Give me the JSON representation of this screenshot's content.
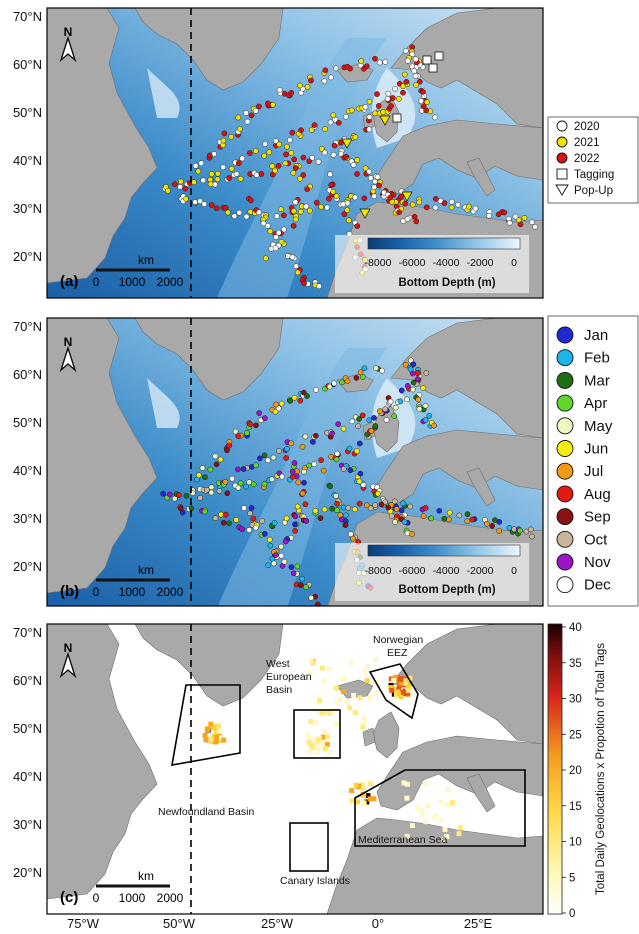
{
  "lat_ticks": [
    "70°N",
    "60°N",
    "50°N",
    "40°N",
    "30°N",
    "20°N"
  ],
  "lon_ticks": [
    "75°W",
    "50°W",
    "25°W",
    "0°",
    "25°E"
  ],
  "north_arrow": "N",
  "scalebar": {
    "unit": "km",
    "labels": [
      "0",
      "1000",
      "2000"
    ]
  },
  "panels": [
    {
      "letter": "(a)"
    },
    {
      "letter": "(b)"
    },
    {
      "letter": "(c)"
    }
  ],
  "depth_bar": {
    "title": "Bottom Depth (m)",
    "ticks": [
      "-8000",
      "-6000",
      "-4000",
      "-2000",
      "0"
    ],
    "colors": [
      "#0b3d78",
      "#1660a8",
      "#2e86c6",
      "#5aa6d8",
      "#8dc3e6",
      "#bcdcf0",
      "#e3f0f9"
    ]
  },
  "legend_a": [
    {
      "label": "2020",
      "marker": "circle",
      "color": "#ffffff"
    },
    {
      "label": "2021",
      "marker": "circle",
      "color": "#f2e200"
    },
    {
      "label": "2022",
      "marker": "circle",
      "color": "#d41414"
    },
    {
      "label": "Tagging",
      "marker": "square",
      "color": "#ffffff"
    },
    {
      "label": "Pop-Up",
      "marker": "triangle-down",
      "color": "#ffffff"
    }
  ],
  "legend_b": [
    {
      "label": "Jan",
      "color": "#1f2ad6"
    },
    {
      "label": "Feb",
      "color": "#1cb5ee"
    },
    {
      "label": "Mar",
      "color": "#1f6e12"
    },
    {
      "label": "Apr",
      "color": "#5fd62c"
    },
    {
      "label": "May",
      "color": "#eef7c2"
    },
    {
      "label": "Jun",
      "color": "#f6ec14"
    },
    {
      "label": "Jul",
      "color": "#f29a18"
    },
    {
      "label": "Aug",
      "color": "#e41a12"
    },
    {
      "label": "Sep",
      "color": "#8b1212"
    },
    {
      "label": "Oct",
      "color": "#c9b69a"
    },
    {
      "label": "Nov",
      "color": "#9a16c4"
    },
    {
      "label": "Dec",
      "color": "#ffffff"
    }
  ],
  "regions": [
    {
      "name": "Norwegian EEZ",
      "lines": [
        "Norwegian",
        "EEZ"
      ]
    },
    {
      "name": "West European Basin",
      "lines": [
        "West",
        "European",
        "Basin"
      ]
    },
    {
      "name": "Newfoundland Basin",
      "lines": [
        "Newfoundland Basin"
      ]
    },
    {
      "name": "Mediterranean Sea",
      "lines": [
        "Mediterranean Sea"
      ]
    },
    {
      "name": "Canary Islands",
      "lines": [
        "Canary Islands"
      ]
    }
  ],
  "heat_bar": {
    "title": "Total Daily Geolocations x Propotion of Total Tags",
    "ticks": [
      "40",
      "35",
      "30",
      "25",
      "20",
      "15",
      "10",
      "5",
      "0"
    ]
  },
  "colors": {
    "land": "#a9a9a9",
    "deep_ocean": "#2f7fc0",
    "shelf": "#d6e9f6",
    "dashed_line": "#000000"
  }
}
